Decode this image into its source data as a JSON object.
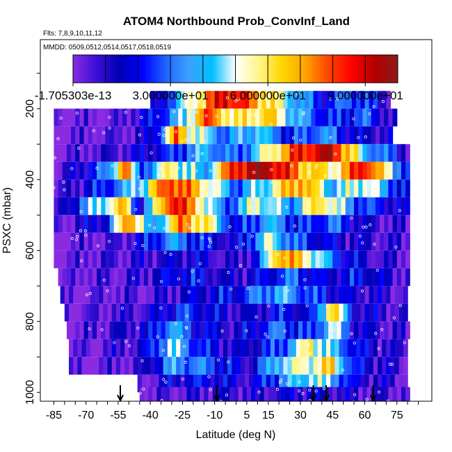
{
  "chart_data": {
    "type": "heatmap",
    "title": "ATOM4 Northbound Prob_ConvInf_Land",
    "subtitle_flights": "Flts: 7,8,9,10,11,12",
    "subtitle_dates": "MMDD: 0509,0512,0514,0517,0518,0519",
    "xlabel": "Latitude (deg N)",
    "ylabel": "PSXC (mbar)",
    "xlim": [
      -90,
      90
    ],
    "ylim": [
      1025,
      25
    ],
    "y_reversed": true,
    "x_ticks": [
      "-85",
      "-70",
      "-55",
      "-40",
      "-25",
      "-10",
      "5",
      "15",
      "30",
      "45",
      "60",
      "75"
    ],
    "x_tick_values": [
      -85,
      -70,
      -55,
      -40,
      -25,
      -10,
      5,
      15,
      30,
      45,
      60,
      75
    ],
    "y_ticks": [
      "200",
      "400",
      "600",
      "800",
      "1000"
    ],
    "y_tick_values": [
      200,
      400,
      600,
      800,
      1000
    ],
    "colorbar": {
      "min": 0,
      "max": 100,
      "tick_labels": [
        "-1.705303e-13",
        "3.000000e+01",
        "6.000000e+01",
        "9.000000e+01"
      ],
      "tick_values": [
        0,
        30,
        60,
        90
      ],
      "colors": [
        "#8a2be2",
        "#3c0fd8",
        "#0000b4",
        "#0000ff",
        "#1e64ff",
        "#3ca0ff",
        "#00bfff",
        "#ffffff",
        "#fff58a",
        "#ffd700",
        "#ffa500",
        "#ff4500",
        "#ff0000",
        "#b40000",
        "#8b1a1a"
      ]
    },
    "airport_markers_lat": [
      -54,
      -9,
      36,
      42,
      64
    ],
    "pressure_levels": [
      175,
      225,
      275,
      325,
      375,
      425,
      475,
      525,
      575,
      625,
      675,
      725,
      775,
      825,
      875,
      925,
      975,
      1010
    ],
    "level_lat_ranges": [
      [
        -40,
        71
      ],
      [
        -85,
        74
      ],
      [
        -85,
        73
      ],
      [
        -85,
        80
      ],
      [
        -85,
        80
      ],
      [
        -85,
        80
      ],
      [
        -85,
        80
      ],
      [
        -85,
        80
      ],
      [
        -85,
        80
      ],
      [
        -85,
        80
      ],
      [
        -83,
        80
      ],
      [
        -82,
        80
      ],
      [
        -80,
        80
      ],
      [
        -79,
        80
      ],
      [
        -78,
        80
      ],
      [
        -78,
        80
      ],
      [
        -46,
        80
      ],
      [
        -45,
        80
      ]
    ],
    "level_features": [
      [
        [
          -40,
          5
        ],
        [
          -20,
          55
        ],
        [
          -5,
          92
        ],
        [
          10,
          70
        ],
        [
          25,
          45
        ],
        [
          40,
          20
        ],
        [
          55,
          30
        ],
        [
          71,
          10
        ]
      ],
      [
        [
          -85,
          0
        ],
        [
          -55,
          2
        ],
        [
          -40,
          18
        ],
        [
          -25,
          40
        ],
        [
          -15,
          80
        ],
        [
          0,
          55
        ],
        [
          15,
          65
        ],
        [
          30,
          35
        ],
        [
          45,
          20
        ],
        [
          60,
          28
        ],
        [
          74,
          5
        ]
      ],
      [
        [
          -85,
          0
        ],
        [
          -45,
          5
        ],
        [
          -35,
          30
        ],
        [
          -28,
          75
        ],
        [
          -18,
          50
        ],
        [
          -5,
          30
        ],
        [
          10,
          45
        ],
        [
          25,
          20
        ],
        [
          40,
          35
        ],
        [
          55,
          15
        ],
        [
          73,
          10
        ]
      ],
      [
        [
          -85,
          0
        ],
        [
          -50,
          10
        ],
        [
          -30,
          22
        ],
        [
          -15,
          40
        ],
        [
          0,
          25
        ],
        [
          15,
          55
        ],
        [
          30,
          85
        ],
        [
          45,
          92
        ],
        [
          60,
          40
        ],
        [
          72,
          25
        ],
        [
          80,
          10
        ]
      ],
      [
        [
          -85,
          0
        ],
        [
          -60,
          30
        ],
        [
          -52,
          80
        ],
        [
          -45,
          25
        ],
        [
          -30,
          60
        ],
        [
          -15,
          35
        ],
        [
          0,
          88
        ],
        [
          15,
          96
        ],
        [
          30,
          70
        ],
        [
          45,
          55
        ],
        [
          60,
          90
        ],
        [
          80,
          20
        ]
      ],
      [
        [
          -85,
          0
        ],
        [
          -60,
          25
        ],
        [
          -45,
          45
        ],
        [
          -30,
          85
        ],
        [
          -15,
          60
        ],
        [
          0,
          30
        ],
        [
          15,
          50
        ],
        [
          30,
          75
        ],
        [
          45,
          40
        ],
        [
          60,
          55
        ],
        [
          80,
          15
        ]
      ],
      [
        [
          -85,
          0
        ],
        [
          -65,
          45
        ],
        [
          -52,
          65
        ],
        [
          -45,
          15
        ],
        [
          -30,
          90
        ],
        [
          -20,
          70
        ],
        [
          -5,
          25
        ],
        [
          10,
          55
        ],
        [
          25,
          35
        ],
        [
          40,
          65
        ],
        [
          55,
          30
        ],
        [
          80,
          10
        ]
      ],
      [
        [
          -85,
          0
        ],
        [
          -60,
          20
        ],
        [
          -50,
          80
        ],
        [
          -40,
          30
        ],
        [
          -25,
          75
        ],
        [
          -12,
          55
        ],
        [
          0,
          15
        ],
        [
          15,
          40
        ],
        [
          30,
          20
        ],
        [
          45,
          30
        ],
        [
          60,
          10
        ],
        [
          80,
          5
        ]
      ],
      [
        [
          -85,
          0
        ],
        [
          -55,
          5
        ],
        [
          -45,
          15
        ],
        [
          -30,
          35
        ],
        [
          -15,
          20
        ],
        [
          0,
          10
        ],
        [
          15,
          50
        ],
        [
          30,
          25
        ],
        [
          45,
          15
        ],
        [
          60,
          10
        ],
        [
          80,
          5
        ]
      ],
      [
        [
          -85,
          0
        ],
        [
          -40,
          10
        ],
        [
          -20,
          15
        ],
        [
          0,
          5
        ],
        [
          10,
          20
        ],
        [
          20,
          75
        ],
        [
          35,
          55
        ],
        [
          50,
          20
        ],
        [
          65,
          8
        ],
        [
          80,
          5
        ]
      ],
      [
        [
          -83,
          0
        ],
        [
          -45,
          8
        ],
        [
          -25,
          22
        ],
        [
          -5,
          10
        ],
        [
          10,
          15
        ],
        [
          25,
          30
        ],
        [
          40,
          15
        ],
        [
          60,
          20
        ],
        [
          80,
          5
        ]
      ],
      [
        [
          -82,
          0
        ],
        [
          -40,
          5
        ],
        [
          -20,
          15
        ],
        [
          0,
          20
        ],
        [
          20,
          40
        ],
        [
          35,
          25
        ],
        [
          50,
          15
        ],
        [
          65,
          10
        ],
        [
          80,
          5
        ]
      ],
      [
        [
          -80,
          0
        ],
        [
          -40,
          10
        ],
        [
          -25,
          25
        ],
        [
          -10,
          15
        ],
        [
          5,
          10
        ],
        [
          20,
          20
        ],
        [
          35,
          15
        ],
        [
          45,
          70
        ],
        [
          55,
          15
        ],
        [
          80,
          5
        ]
      ],
      [
        [
          -79,
          0
        ],
        [
          -40,
          15
        ],
        [
          -30,
          40
        ],
        [
          -20,
          20
        ],
        [
          0,
          10
        ],
        [
          20,
          30
        ],
        [
          35,
          20
        ],
        [
          45,
          50
        ],
        [
          55,
          15
        ],
        [
          70,
          8
        ],
        [
          80,
          5
        ]
      ],
      [
        [
          -78,
          0
        ],
        [
          -45,
          10
        ],
        [
          -30,
          45
        ],
        [
          -15,
          20
        ],
        [
          0,
          10
        ],
        [
          20,
          25
        ],
        [
          35,
          60
        ],
        [
          50,
          30
        ],
        [
          60,
          15
        ],
        [
          80,
          5
        ]
      ],
      [
        [
          -78,
          0
        ],
        [
          -45,
          5
        ],
        [
          -30,
          35
        ],
        [
          -15,
          30
        ],
        [
          5,
          10
        ],
        [
          20,
          45
        ],
        [
          35,
          55
        ],
        [
          45,
          62
        ],
        [
          55,
          20
        ],
        [
          70,
          10
        ],
        [
          80,
          5
        ]
      ],
      [
        [
          -46,
          0
        ],
        [
          -30,
          15
        ],
        [
          -15,
          20
        ],
        [
          5,
          10
        ],
        [
          20,
          30
        ],
        [
          35,
          50
        ],
        [
          45,
          40
        ],
        [
          55,
          15
        ],
        [
          80,
          5
        ]
      ],
      [
        [
          -45,
          0
        ],
        [
          -30,
          5
        ],
        [
          -10,
          10
        ],
        [
          10,
          8
        ],
        [
          30,
          15
        ],
        [
          50,
          10
        ],
        [
          80,
          5
        ]
      ]
    ]
  }
}
